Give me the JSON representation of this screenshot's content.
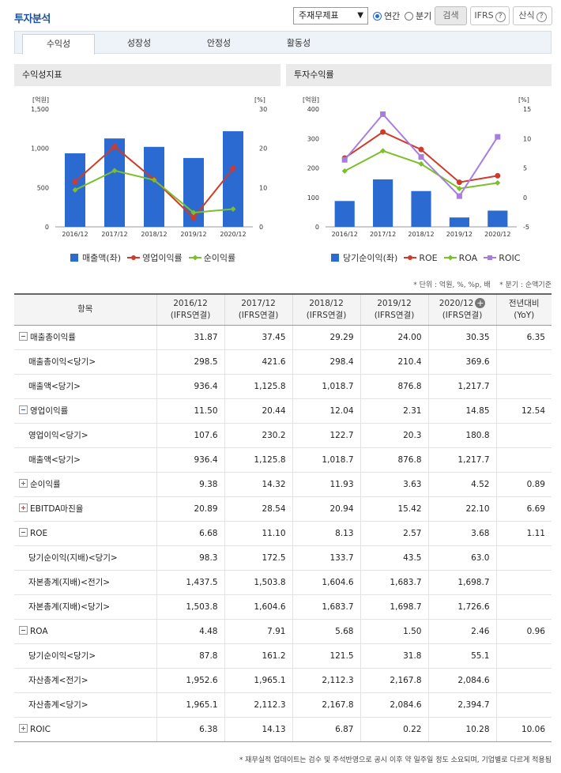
{
  "header": {
    "title": "투자분석",
    "statement_select": "주재무제표",
    "radio_annual": "연간",
    "radio_quarter": "분기",
    "search_btn": "검색",
    "ifrs_btn": "IFRS",
    "formula_btn": "산식"
  },
  "tabs": [
    "수익성",
    "성장성",
    "안정성",
    "활동성"
  ],
  "panel_left": {
    "title": "수익성지표",
    "left_unit": "[억원]",
    "right_unit": "[%]",
    "legend": [
      "매출액(좌)",
      "영업이익률",
      "순이익률"
    ]
  },
  "panel_right": {
    "title": "투자수익률",
    "left_unit": "[억원]",
    "right_unit": "[%]",
    "legend": [
      "당기순이익(좌)",
      "ROE",
      "ROA",
      "ROIC"
    ]
  },
  "chart_data": [
    {
      "type": "bar",
      "title": "수익성지표",
      "categories": [
        "2016/12",
        "2017/12",
        "2018/12",
        "2019/12",
        "2020/12"
      ],
      "ylim_left": [
        0,
        1500
      ],
      "ylim_right": [
        0,
        30
      ],
      "yticks_left": [
        "1,500",
        "1,000",
        "500",
        "0"
      ],
      "yticks_right": [
        "30",
        "20",
        "10",
        "0"
      ],
      "series": [
        {
          "name": "매출액(좌)",
          "axis": "left",
          "kind": "bar",
          "color": "#2b6bd1",
          "values": [
            936.4,
            1125.8,
            1018.7,
            876.8,
            1217.7
          ]
        },
        {
          "name": "영업이익률",
          "axis": "right",
          "kind": "line",
          "color": "#d03a2a",
          "values": [
            11.5,
            20.44,
            12.04,
            2.31,
            14.85
          ]
        },
        {
          "name": "순이익률",
          "axis": "right",
          "kind": "line",
          "color": "#7cbf2c",
          "values": [
            9.38,
            14.32,
            11.93,
            3.63,
            4.52
          ]
        }
      ]
    },
    {
      "type": "bar",
      "title": "투자수익률",
      "categories": [
        "2016/12",
        "2017/12",
        "2018/12",
        "2019/12",
        "2020/12"
      ],
      "ylim_left": [
        0,
        400
      ],
      "ylim_right": [
        -5,
        15
      ],
      "yticks_left": [
        "400",
        "300",
        "200",
        "100",
        "0"
      ],
      "yticks_right": [
        "15",
        "10",
        "5",
        "0",
        "-5"
      ],
      "series": [
        {
          "name": "당기순이익(좌)",
          "axis": "left",
          "kind": "bar",
          "color": "#2b6bd1",
          "values": [
            87.8,
            161.2,
            121.5,
            31.8,
            55.1
          ]
        },
        {
          "name": "ROE",
          "axis": "right",
          "kind": "line",
          "color": "#d03a2a",
          "values": [
            6.68,
            11.1,
            8.13,
            2.57,
            3.68
          ]
        },
        {
          "name": "ROA",
          "axis": "right",
          "kind": "line",
          "color": "#7cbf2c",
          "values": [
            4.48,
            7.91,
            5.68,
            1.5,
            2.46
          ]
        },
        {
          "name": "ROIC",
          "axis": "right",
          "kind": "line",
          "color": "#a77ee0",
          "values": [
            6.38,
            14.13,
            6.87,
            0.22,
            10.28
          ]
        }
      ]
    }
  ],
  "unit_note": "* 단위 : 억원, %, %p, 배    * 분기 : 순액기준",
  "table": {
    "headers": [
      "항목",
      "2016/12\n(IFRS연결)",
      "2017/12\n(IFRS연결)",
      "2018/12\n(IFRS연결)",
      "2019/12\n(IFRS연결)",
      "2020/12\n(IFRS연결)",
      "전년대비\n(YoY)"
    ],
    "rows": [
      {
        "label": "매출총이익률",
        "toggle": "minus",
        "sub": false,
        "values": [
          "31.87",
          "37.45",
          "29.29",
          "24.00",
          "30.35",
          "6.35"
        ]
      },
      {
        "label": "매출총이익<당기>",
        "toggle": "",
        "sub": true,
        "values": [
          "298.5",
          "421.6",
          "298.4",
          "210.4",
          "369.6",
          ""
        ]
      },
      {
        "label": "매출액<당기>",
        "toggle": "",
        "sub": true,
        "values": [
          "936.4",
          "1,125.8",
          "1,018.7",
          "876.8",
          "1,217.7",
          ""
        ]
      },
      {
        "label": "영업이익률",
        "toggle": "minus",
        "sub": false,
        "values": [
          "11.50",
          "20.44",
          "12.04",
          "2.31",
          "14.85",
          "12.54"
        ]
      },
      {
        "label": "영업이익<당기>",
        "toggle": "",
        "sub": true,
        "values": [
          "107.6",
          "230.2",
          "122.7",
          "20.3",
          "180.8",
          ""
        ]
      },
      {
        "label": "매출액<당기>",
        "toggle": "",
        "sub": true,
        "values": [
          "936.4",
          "1,125.8",
          "1,018.7",
          "876.8",
          "1,217.7",
          ""
        ]
      },
      {
        "label": "순이익률",
        "toggle": "plus",
        "sub": false,
        "values": [
          "9.38",
          "14.32",
          "11.93",
          "3.63",
          "4.52",
          "0.89"
        ]
      },
      {
        "label": "EBITDA마진율",
        "toggle": "plus",
        "sub": false,
        "values": [
          "20.89",
          "28.54",
          "20.94",
          "15.42",
          "22.10",
          "6.69"
        ]
      },
      {
        "label": "ROE",
        "toggle": "minus",
        "sub": false,
        "values": [
          "6.68",
          "11.10",
          "8.13",
          "2.57",
          "3.68",
          "1.11"
        ]
      },
      {
        "label": "당기순이익(지배)<당기>",
        "toggle": "",
        "sub": true,
        "values": [
          "98.3",
          "172.5",
          "133.7",
          "43.5",
          "63.0",
          ""
        ]
      },
      {
        "label": "자본총계(지배)<전기>",
        "toggle": "",
        "sub": true,
        "values": [
          "1,437.5",
          "1,503.8",
          "1,604.6",
          "1,683.7",
          "1,698.7",
          ""
        ]
      },
      {
        "label": "자본총계(지배)<당기>",
        "toggle": "",
        "sub": true,
        "values": [
          "1,503.8",
          "1,604.6",
          "1,683.7",
          "1,698.7",
          "1,726.6",
          ""
        ]
      },
      {
        "label": "ROA",
        "toggle": "minus",
        "sub": false,
        "values": [
          "4.48",
          "7.91",
          "5.68",
          "1.50",
          "2.46",
          "0.96"
        ]
      },
      {
        "label": "당기순이익<당기>",
        "toggle": "",
        "sub": true,
        "values": [
          "87.8",
          "161.2",
          "121.5",
          "31.8",
          "55.1",
          ""
        ]
      },
      {
        "label": "자산총계<전기>",
        "toggle": "",
        "sub": true,
        "values": [
          "1,952.6",
          "1,965.1",
          "2,112.3",
          "2,167.8",
          "2,084.6",
          ""
        ]
      },
      {
        "label": "자산총계<당기>",
        "toggle": "",
        "sub": true,
        "values": [
          "1,965.1",
          "2,112.3",
          "2,167.8",
          "2,084.6",
          "2,394.7",
          ""
        ]
      },
      {
        "label": "ROIC",
        "toggle": "plus",
        "sub": false,
        "values": [
          "6.38",
          "14.13",
          "6.87",
          "0.22",
          "10.28",
          "10.06"
        ]
      }
    ]
  },
  "footer_note": "* 재무실적 업데이트는 검수 및 주석반영으로 공시 이후 약 일주일 정도 소요되며, 기업별로 다르게 적용됨"
}
